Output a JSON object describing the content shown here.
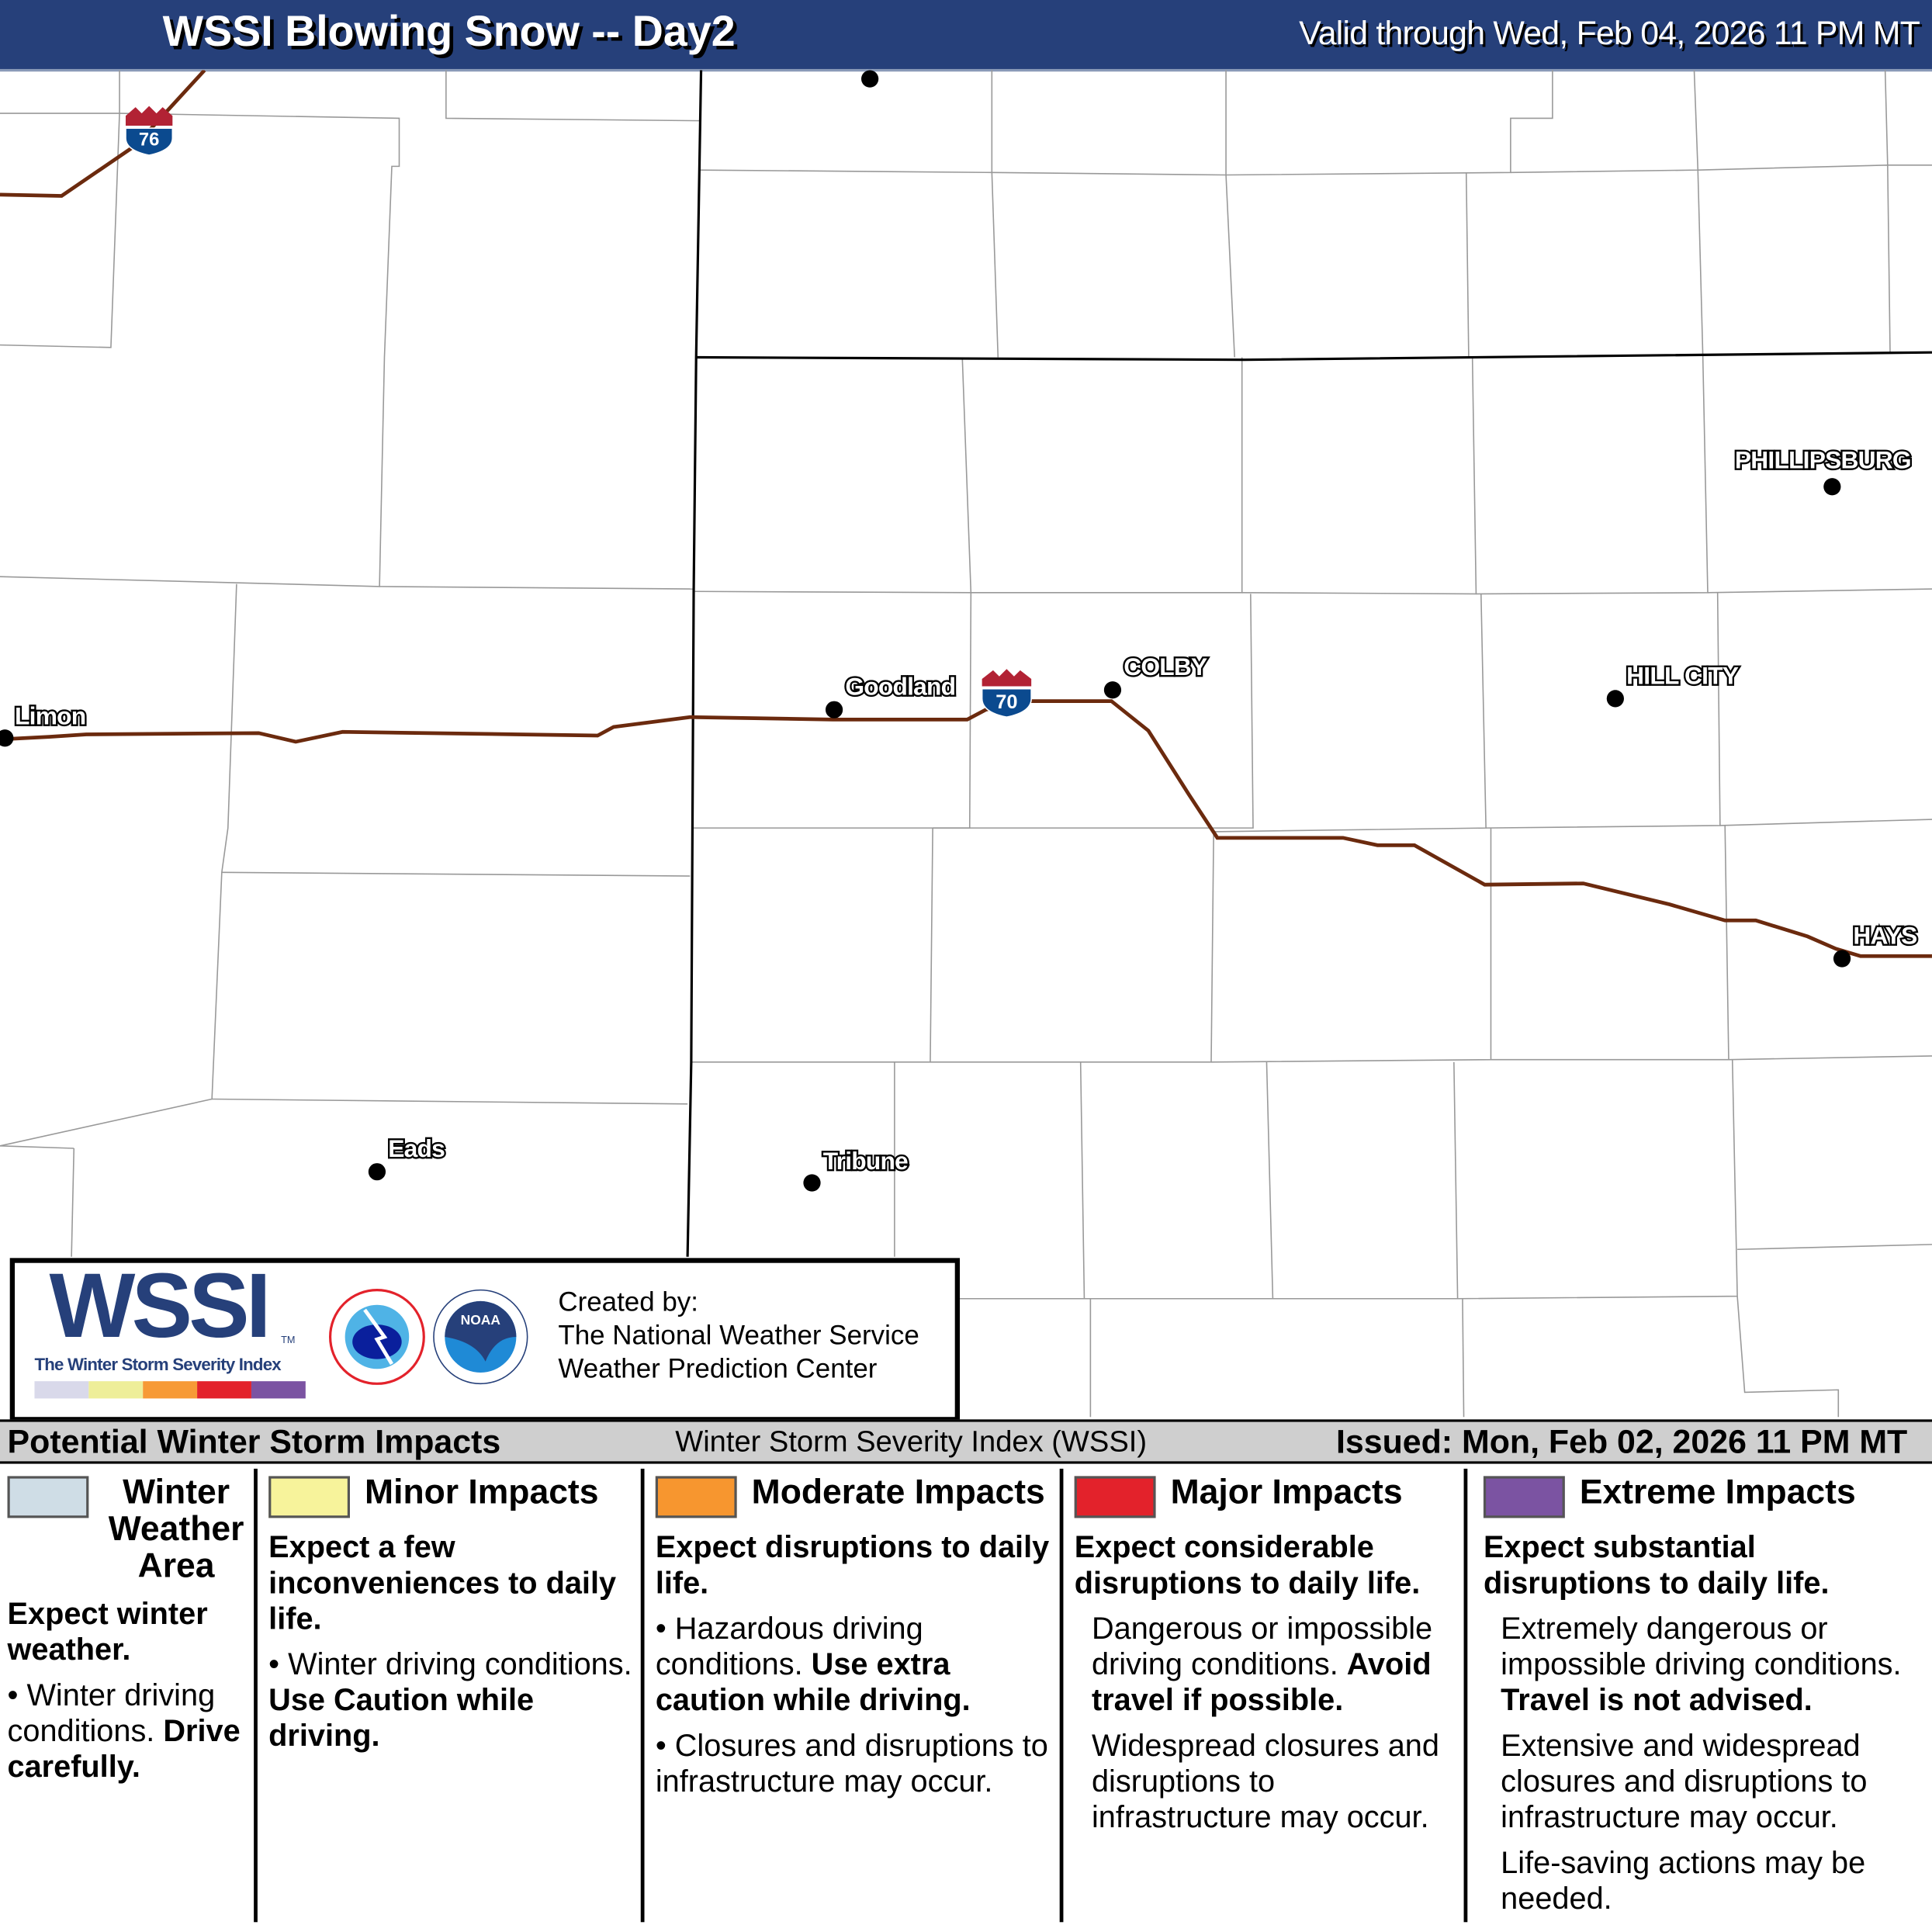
{
  "header": {
    "title": "WSSI Blowing Snow -- Day2",
    "valid": "Valid through Wed, Feb 04, 2026 11 PM MT"
  },
  "map": {
    "cities": [
      "Limon",
      "Goodland",
      "COLBY",
      "HILL CITY",
      "PHILLIPSBURG",
      "HAYS",
      "Eads",
      "Tribune"
    ],
    "interstates": [
      "76",
      "70"
    ],
    "colors": {
      "interstate_line": "#6b2a0e",
      "shield_top": "#b22234",
      "shield_body": "#0b4a8f"
    }
  },
  "logo": {
    "wssi": "WSSI",
    "tm": "TM",
    "subtitle": "The Winter Storm Severity Index",
    "created": [
      "Created by:",
      "The National Weather Service",
      "Weather Prediction Center"
    ],
    "scale_colors": [
      "#d9d9ea",
      "#eeee99",
      "#f79a36",
      "#e3222b",
      "#7b53a2"
    ]
  },
  "legend": {
    "title": "Potential Winter Storm Impacts",
    "center": "Winter Storm Severity Index (WSSI)",
    "issued": "Issued: Mon, Feb 02, 2026 11 PM MT",
    "categories": [
      {
        "name": "Winter Weather Area",
        "color": "#cfdde6",
        "headline": "Expect winter weather.",
        "bullets": [
          "Winter driving conditions. ",
          "Drive carefully."
        ]
      },
      {
        "name": "Minor Impacts",
        "color": "#f7f39b",
        "headline": "Expect a few inconveniences to daily life.",
        "bullets": [
          "Winter driving conditions. ",
          "Use Caution while driving."
        ]
      },
      {
        "name": "Moderate Impacts",
        "color": "#f7962f",
        "headline": "Expect disruptions to daily life.",
        "bullets": [
          "Hazardous driving conditions. ",
          "Use extra caution while driving.",
          "Closures and disruptions to infrastructure may occur."
        ]
      },
      {
        "name": "Major Impacts",
        "color": "#e3222b",
        "headline": "Expect considerable disruptions to daily life.",
        "bullets": [
          "Dangerous or impossible driving conditions. ",
          "Avoid travel if possible.",
          "Widespread closures and disruptions to infrastructure may occur."
        ]
      },
      {
        "name": "Extreme Impacts",
        "color": "#7b53a2",
        "headline": "Expect substantial disruptions to daily life.",
        "bullets": [
          "Extremely dangerous or impossible driving conditions. ",
          "Travel is not advised.",
          "Extensive and widespread closures and disruptions to infrastructure may occur.",
          "Life-saving actions may be needed."
        ]
      }
    ]
  }
}
